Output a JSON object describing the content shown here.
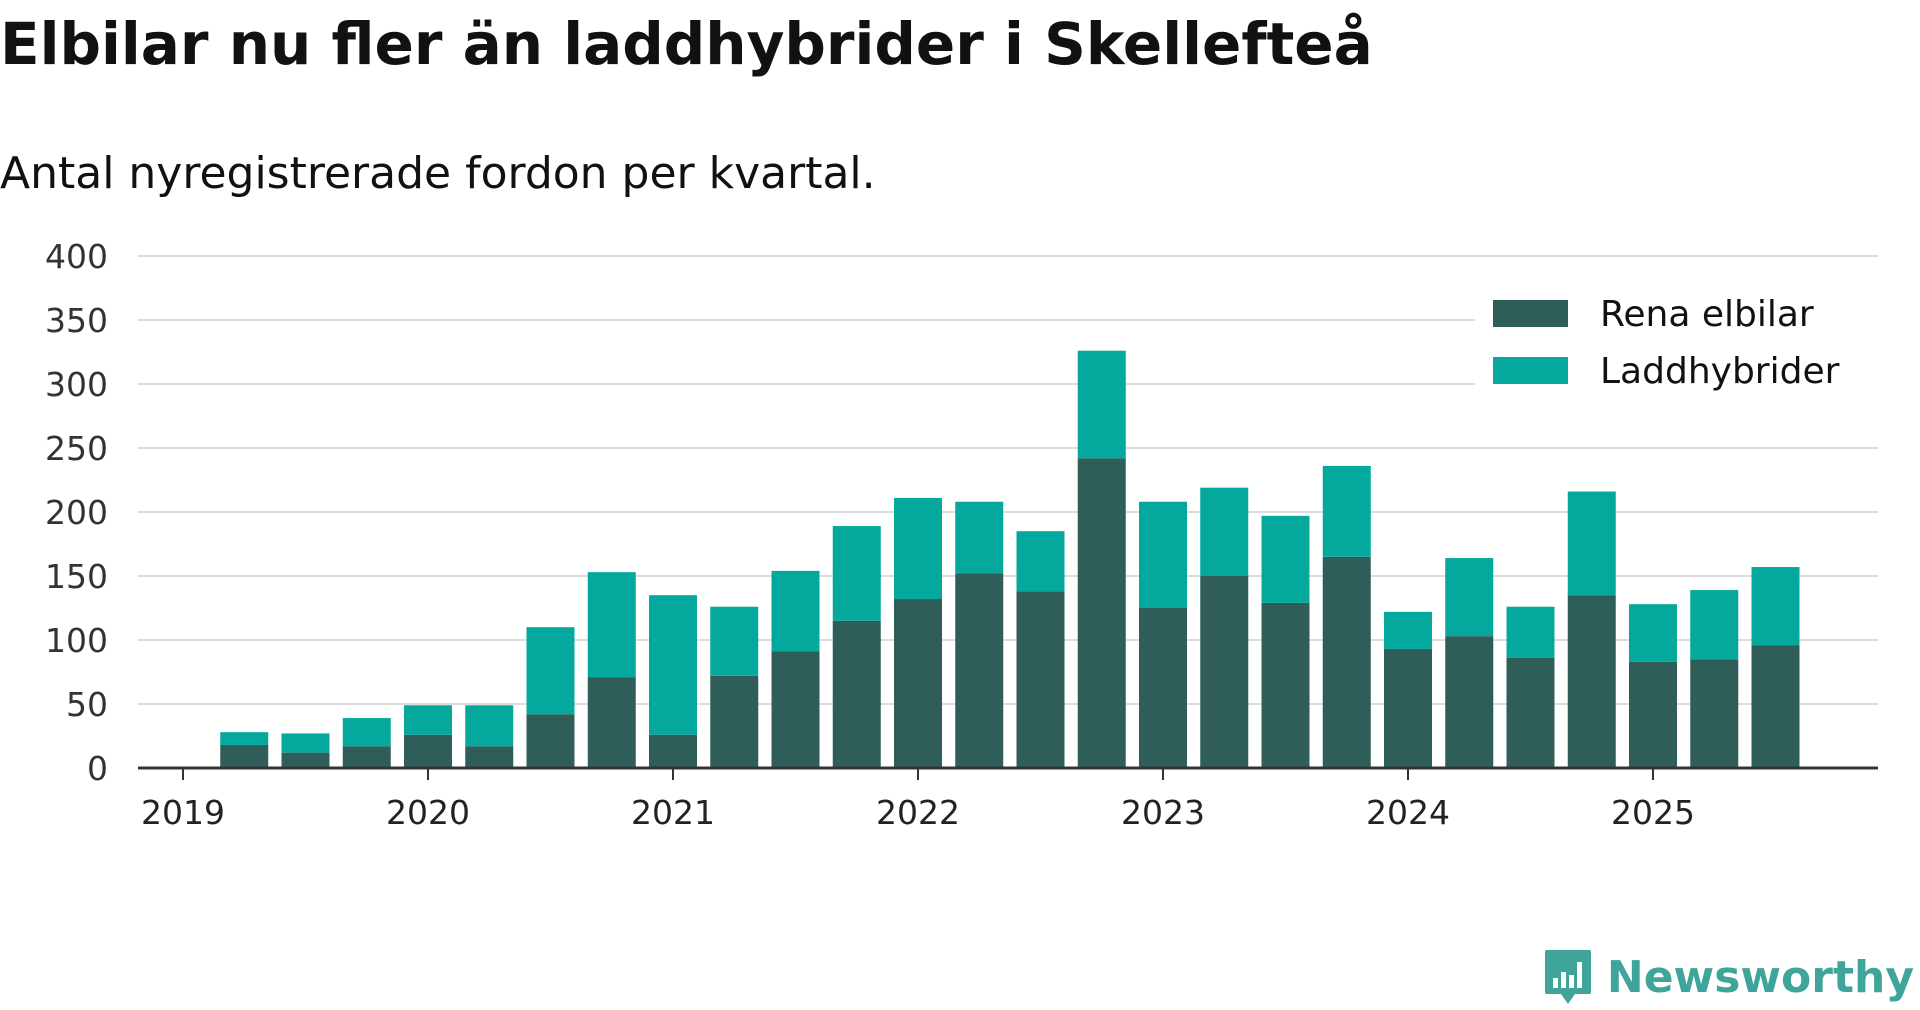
{
  "header": {
    "title": "Elbilar nu fler än laddhybrider i Skellefteå",
    "subtitle": "Antal nyregistrerade fordon per kvartal."
  },
  "branding": {
    "name": "Newsworthy",
    "icon": "newsworthy-logo-icon",
    "color": "#3fa59a"
  },
  "colors": {
    "elbilar": "#2f5e58",
    "laddhybrider": "#05a89c",
    "grid": "#dddddd",
    "axis": "#333333"
  },
  "chart_data": {
    "type": "bar",
    "stacked": true,
    "title": "Elbilar nu fler än laddhybrider i Skellefteå",
    "subtitle": "Antal nyregistrerade fordon per kvartal.",
    "xlabel": "",
    "ylabel": "",
    "ylim": [
      0,
      400
    ],
    "yticks": [
      0,
      50,
      100,
      150,
      200,
      250,
      300,
      350,
      400
    ],
    "xticks": [
      "2019",
      "2020",
      "2021",
      "2022",
      "2023",
      "2024",
      "2025"
    ],
    "legend_position": "top-right",
    "grid": true,
    "categories": [
      "2019Q2",
      "2019Q3",
      "2019Q4",
      "2020Q1",
      "2020Q2",
      "2020Q3",
      "2020Q4",
      "2021Q1",
      "2021Q2",
      "2021Q3",
      "2021Q4",
      "2022Q1",
      "2022Q2",
      "2022Q3",
      "2022Q4",
      "2023Q1",
      "2023Q2",
      "2023Q3",
      "2023Q4",
      "2024Q1",
      "2024Q2",
      "2024Q3",
      "2024Q4",
      "2025Q1",
      "2025Q2",
      "2025Q3"
    ],
    "series": [
      {
        "name": "Rena elbilar",
        "values": [
          18,
          12,
          17,
          26,
          17,
          42,
          71,
          26,
          72,
          91,
          115,
          132,
          152,
          138,
          242,
          125,
          150,
          129,
          165,
          93,
          103,
          86,
          135,
          83,
          85,
          96
        ]
      },
      {
        "name": "Laddhybrider",
        "values": [
          10,
          15,
          22,
          23,
          32,
          68,
          82,
          109,
          54,
          63,
          74,
          79,
          56,
          47,
          84,
          83,
          69,
          68,
          71,
          29,
          61,
          40,
          81,
          45,
          54,
          61
        ]
      }
    ]
  }
}
